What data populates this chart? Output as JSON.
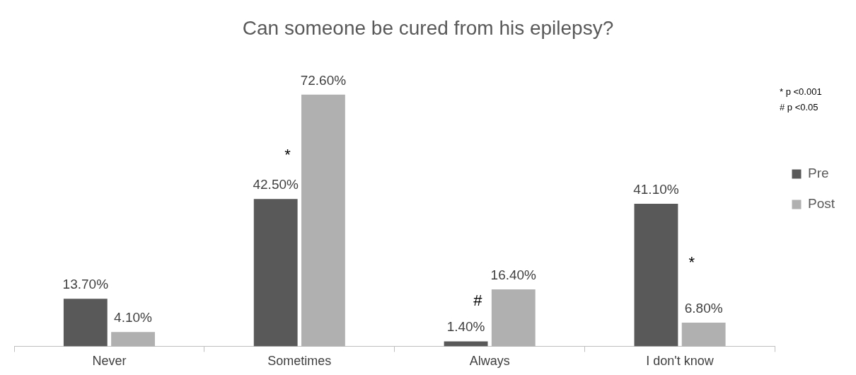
{
  "chart_data": {
    "type": "bar",
    "title": "Can someone be cured from his epilepsy?",
    "categories": [
      "Never",
      "Sometimes",
      "Always",
      "I don't know"
    ],
    "series": [
      {
        "name": "Pre",
        "color": "#595959",
        "values": [
          13.7,
          42.5,
          1.4,
          41.1
        ],
        "value_labels": [
          "13.70%",
          "42.50%",
          "1.40%",
          "41.10%"
        ]
      },
      {
        "name": "Post",
        "color": "#b0b0b0",
        "values": [
          4.1,
          72.6,
          16.4,
          6.8
        ],
        "value_labels": [
          "4.10%",
          "72.60%",
          "16.40%",
          "6.80%"
        ]
      }
    ],
    "annotations": [
      {
        "text": "*",
        "x": "Sometimes",
        "y": 55
      },
      {
        "text": "#",
        "x": "Always",
        "y": 13
      },
      {
        "text": "*",
        "x": "I don't know",
        "y": 24
      },
      "* p <0.001",
      "# p <0.05"
    ],
    "legend": "right",
    "grid": false,
    "tick_labels": "x"
  }
}
